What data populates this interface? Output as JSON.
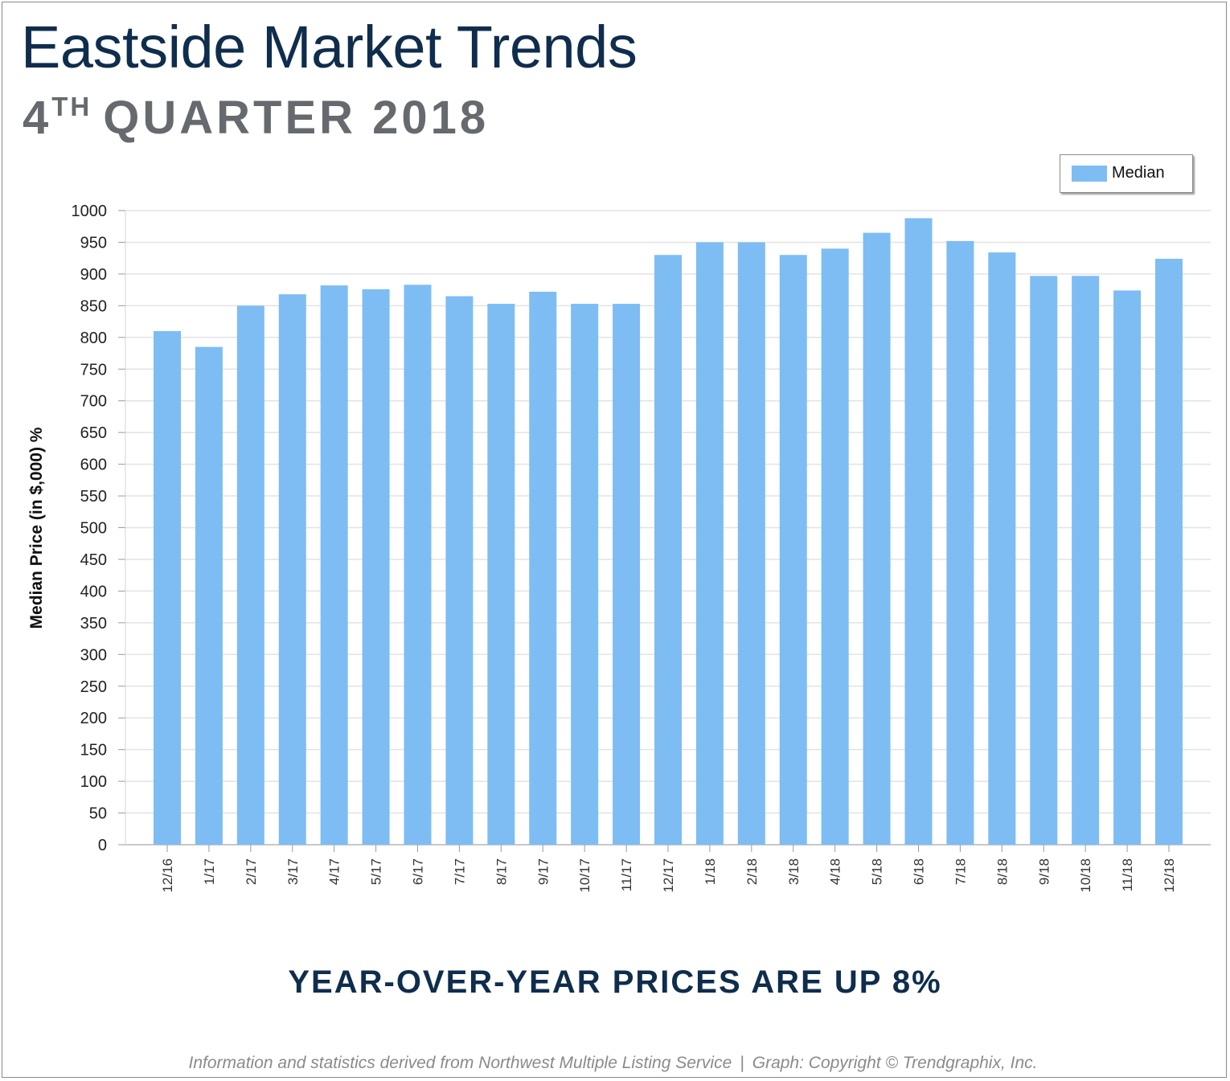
{
  "header": {
    "title": "Eastside Market Trends",
    "subtitle_number": "4",
    "subtitle_suffix": "TH",
    "subtitle_rest": "QUARTER 2018"
  },
  "headline": "YEAR-OVER-YEAR PRICES ARE UP 8%",
  "footer": {
    "source": "Information and statistics derived from Northwest Multiple Listing Service",
    "separator": "|",
    "copyright": "Graph: Copyright © Trendgraphix, Inc."
  },
  "colors": {
    "bar": "#7dbdf4",
    "title": "#0f2d4d",
    "subtitle": "#666a6e",
    "grid": "#e3e3e3"
  },
  "chart_data": {
    "type": "bar",
    "ylabel": "Median Price (in $,000) %",
    "ylim": [
      0,
      1000
    ],
    "yticks": [
      0,
      50,
      100,
      150,
      200,
      250,
      300,
      350,
      400,
      450,
      500,
      550,
      600,
      650,
      700,
      750,
      800,
      850,
      900,
      950,
      1000
    ],
    "grid": true,
    "legend_position": "top-right",
    "categories": [
      "12/16",
      "1/17",
      "2/17",
      "3/17",
      "4/17",
      "5/17",
      "6/17",
      "7/17",
      "8/17",
      "9/17",
      "10/17",
      "11/17",
      "12/17",
      "1/18",
      "2/18",
      "3/18",
      "4/18",
      "5/18",
      "6/18",
      "7/18",
      "8/18",
      "9/18",
      "10/18",
      "11/18",
      "12/18"
    ],
    "series": [
      {
        "name": "Median",
        "values": [
          810,
          785,
          850,
          868,
          882,
          876,
          883,
          865,
          853,
          872,
          853,
          853,
          930,
          950,
          950,
          930,
          940,
          965,
          988,
          952,
          934,
          897,
          897,
          874,
          924
        ]
      }
    ]
  }
}
